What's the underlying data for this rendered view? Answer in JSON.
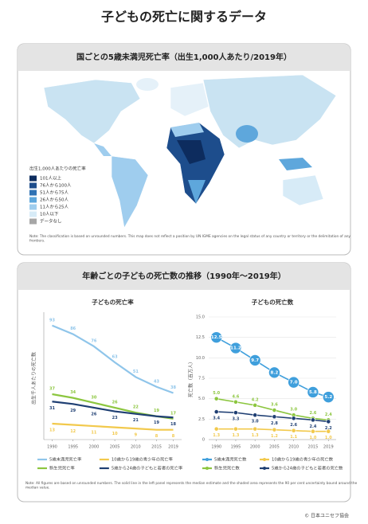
{
  "title": "子どもの死亡に関するデータ",
  "map_panel": {
    "header": "国ごとの5歳未満児死亡率（出生1,000人あたり/2019年）",
    "legend_title": "出生1,000人あたりの死亡率",
    "legend": [
      {
        "label": "101人以上",
        "color": "#0d2c5e"
      },
      {
        "label": "76人から100人",
        "color": "#1d4d8c"
      },
      {
        "label": "51人から75人",
        "color": "#2f72b4"
      },
      {
        "label": "26人から50人",
        "color": "#5ea7dc"
      },
      {
        "label": "11人から25人",
        "color": "#9fcdee"
      },
      {
        "label": "10人以下",
        "color": "#d7ebf7"
      },
      {
        "label": "データなし",
        "color": "#a6a6a6"
      }
    ],
    "note": "Note: The classification is based on unrounded numbers. This map does not reflect a position by UN IGME agencies on the legal status of any country or territory or the delimitation of any frontiers."
  },
  "trend_panel": {
    "header": "年齢ごとの子どもの死亡数の推移（1990年～2019年）",
    "note": "Note: All figures are based on unrounded numbers. The solid line in the left panel represents the median estimate and the shaded area represents the 90 per cent uncertainty bound around the median value."
  },
  "chart_data": [
    {
      "type": "line",
      "title": "子どもの死亡率",
      "y_label": "出生千人あたりの死亡数",
      "x": [
        1990,
        1995,
        2000,
        2005,
        2010,
        2015,
        2019
      ],
      "xlim": [
        1988,
        2021
      ],
      "xticks": [
        1990,
        1995,
        2000,
        2005,
        2010,
        2015,
        2019
      ],
      "ylim": [
        0,
        100
      ],
      "grid": false,
      "series": [
        {
          "name": "5歳未満児死亡率",
          "color": "#8fc5ea",
          "values": [
            93,
            86,
            76,
            63,
            51,
            43,
            38
          ]
        },
        {
          "name": "新生児死亡率",
          "color": "#8cc63f",
          "values": [
            37,
            34,
            30,
            26,
            22,
            19,
            17
          ]
        },
        {
          "name": "5歳から24歳の子どもと若者の死亡率",
          "color": "#1f3f73",
          "values": [
            31,
            29,
            26,
            23,
            21,
            19,
            18
          ]
        },
        {
          "name": "10歳から19歳の青少年の死亡率",
          "color": "#f2c94c",
          "values": [
            13,
            12,
            11,
            10,
            9,
            8,
            8
          ]
        }
      ]
    },
    {
      "type": "line",
      "title": "子どもの死亡数",
      "y_label": "死亡数（百万人）",
      "x": [
        1990,
        1995,
        2000,
        2005,
        2010,
        2015,
        2019
      ],
      "xlim": [
        1988,
        2021
      ],
      "xticks": [
        1990,
        1995,
        2000,
        2005,
        2010,
        2015,
        2019
      ],
      "ylim": [
        0,
        15
      ],
      "yticks": [
        0,
        2.5,
        {
          "value": 5,
          "label": "5.0"
        },
        7.5,
        {
          "value": 10,
          "label": "10.0"
        },
        12.5,
        {
          "value": 15,
          "label": "15.0"
        }
      ],
      "grid": true,
      "markers": true,
      "series": [
        {
          "name": "5歳未満児死亡数",
          "color": "#3f9fdc",
          "values": [
            12.5,
            11.2,
            9.7,
            8.2,
            7.0,
            5.8,
            5.2
          ],
          "value_labels": [
            "12.5",
            "11.2",
            "9.7",
            "8.2",
            "7.0",
            "5.8",
            "5.2"
          ]
        },
        {
          "name": "新生児死亡数",
          "color": "#8cc63f",
          "values": [
            5.0,
            4.6,
            4.2,
            3.6,
            3.0,
            2.6,
            2.4
          ],
          "value_labels": [
            "5.0",
            "4.6",
            "4.2",
            "3.6",
            "3.0",
            "2.6",
            "2.4"
          ]
        },
        {
          "name": "5歳から24歳の子どもと若者の死亡数",
          "color": "#1f3f73",
          "values": [
            3.4,
            3.3,
            3.0,
            2.8,
            2.6,
            2.4,
            2.2
          ],
          "value_labels": [
            "3.4",
            "3.3",
            "3.0",
            "2.8",
            "2.6",
            "2.4",
            "2.2"
          ]
        },
        {
          "name": "10歳から19歳の青少年の死亡数",
          "color": "#f2c94c",
          "values": [
            1.3,
            1.3,
            1.3,
            1.2,
            1.1,
            1.0,
            1.0
          ],
          "value_labels": [
            "1.3",
            "1.3",
            "1.3",
            "1.2",
            "1.1",
            "1.0",
            "1.0"
          ]
        }
      ]
    }
  ],
  "footer": "© 日本ユニセフ協会"
}
